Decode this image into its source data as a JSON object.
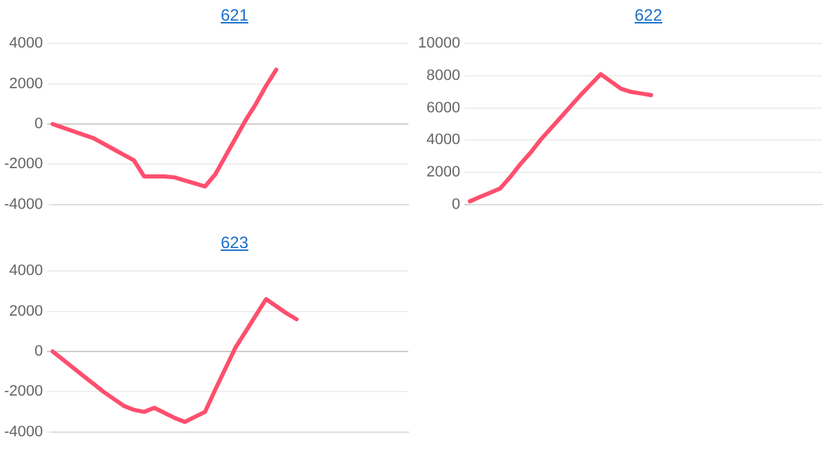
{
  "chart_data": [
    {
      "type": "line",
      "title": "621",
      "categories": [
        null,
        null,
        null,
        null,
        null,
        null,
        null,
        null,
        null,
        null,
        null,
        null,
        null,
        null,
        null,
        null,
        null,
        null,
        null,
        null,
        null,
        null,
        null,
        null,
        null,
        null,
        null,
        null,
        null,
        null,
        null,
        null,
        null,
        null,
        null,
        null
      ],
      "series": [
        {
          "color": "#ff4f6e",
          "values": [
            0,
            -175,
            -350,
            -525,
            -700,
            -975,
            -1250,
            -1525,
            -1800,
            -2600,
            -2600,
            -2600,
            -2650,
            -2800,
            -2950,
            -3100,
            -2500,
            -1600,
            -700,
            200,
            1000,
            1900,
            2700,
            null,
            null,
            null,
            null,
            null,
            null,
            null,
            null,
            null,
            null,
            null,
            null,
            null
          ]
        }
      ],
      "ylim": [
        -4000,
        4000
      ],
      "yticks": [
        -4000,
        -2000,
        0,
        2000,
        4000
      ],
      "grid": "y",
      "tick_labels": "y",
      "legend": false,
      "marker": "none"
    },
    {
      "type": "line",
      "title": "622",
      "categories": [
        null,
        null,
        null,
        null,
        null,
        null,
        null,
        null,
        null,
        null,
        null,
        null,
        null,
        null,
        null,
        null,
        null,
        null,
        null,
        null,
        null,
        null,
        null,
        null,
        null,
        null,
        null,
        null,
        null,
        null,
        null,
        null,
        null,
        null,
        null,
        null
      ],
      "series": [
        {
          "color": "#ff4f6e",
          "values": [
            200,
            470,
            730,
            1000,
            1700,
            2500,
            3200,
            4000,
            4700,
            5400,
            6100,
            6800,
            7450,
            8100,
            7650,
            7200,
            7000,
            6900,
            6800,
            null,
            null,
            null,
            null,
            null,
            null,
            null,
            null,
            null,
            null,
            null,
            null,
            null,
            null,
            null,
            null,
            null
          ]
        }
      ],
      "ylim": [
        0,
        10000
      ],
      "yticks": [
        0,
        2000,
        4000,
        6000,
        8000,
        10000
      ],
      "grid": "y",
      "tick_labels": "y",
      "legend": false,
      "marker": "none"
    },
    {
      "type": "line",
      "title": "623",
      "categories": [
        null,
        null,
        null,
        null,
        null,
        null,
        null,
        null,
        null,
        null,
        null,
        null,
        null,
        null,
        null,
        null,
        null,
        null,
        null,
        null,
        null,
        null,
        null,
        null,
        null,
        null,
        null,
        null,
        null,
        null,
        null,
        null,
        null,
        null,
        null,
        null
      ],
      "series": [
        {
          "color": "#ff4f6e",
          "values": [
            0,
            -400,
            -800,
            -1200,
            -1600,
            -2000,
            -2350,
            -2700,
            -2900,
            -3000,
            -2800,
            -3050,
            -3300,
            -3500,
            -3250,
            -3000,
            -1900,
            -850,
            200,
            1000,
            1800,
            2600,
            2250,
            1900,
            1600,
            null,
            null,
            null,
            null,
            null,
            null,
            null,
            null,
            null,
            null,
            null
          ]
        }
      ],
      "ylim": [
        -4000,
        4000
      ],
      "yticks": [
        -4000,
        -2000,
        0,
        2000,
        4000
      ],
      "grid": "y",
      "tick_labels": "y",
      "legend": false,
      "marker": "none"
    }
  ]
}
